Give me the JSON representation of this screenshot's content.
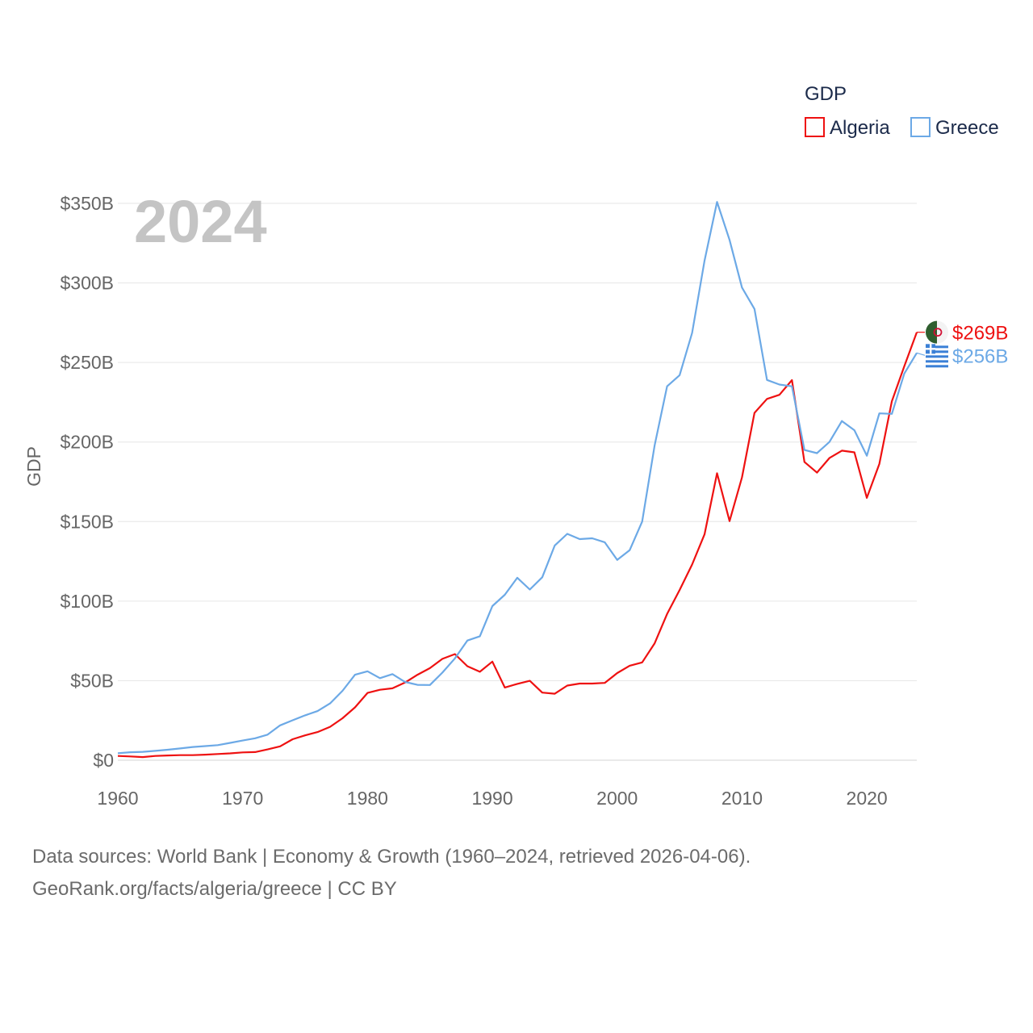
{
  "chart_data": {
    "type": "line",
    "title": "GDP",
    "year_label": "2024",
    "ylabel": "GDP",
    "xlabel": "",
    "ylim": [
      0,
      350
    ],
    "xlim": [
      1960,
      2024
    ],
    "y_ticks": [
      {
        "value": 0,
        "label": "$0"
      },
      {
        "value": 50,
        "label": "$50B"
      },
      {
        "value": 100,
        "label": "$100B"
      },
      {
        "value": 150,
        "label": "$150B"
      },
      {
        "value": 200,
        "label": "$200B"
      },
      {
        "value": 250,
        "label": "$250B"
      },
      {
        "value": 300,
        "label": "$300B"
      },
      {
        "value": 350,
        "label": "$350B"
      }
    ],
    "x_ticks": [
      1960,
      1970,
      1980,
      1990,
      2000,
      2010,
      2020
    ],
    "grid": true,
    "legend_position": "top-right",
    "legend_title": "GDP",
    "series": [
      {
        "name": "Algeria",
        "color": "#ee1111",
        "end_label": "$269B",
        "flag_icon": "algeria-flag-icon",
        "x": [
          1960,
          1961,
          1962,
          1963,
          1964,
          1965,
          1966,
          1967,
          1968,
          1969,
          1970,
          1971,
          1972,
          1973,
          1974,
          1975,
          1976,
          1977,
          1978,
          1979,
          1980,
          1981,
          1982,
          1983,
          1984,
          1985,
          1986,
          1987,
          1988,
          1989,
          1990,
          1991,
          1992,
          1993,
          1994,
          1995,
          1996,
          1997,
          1998,
          1999,
          2000,
          2001,
          2002,
          2003,
          2004,
          2005,
          2006,
          2007,
          2008,
          2009,
          2010,
          2011,
          2012,
          2013,
          2014,
          2015,
          2016,
          2017,
          2018,
          2019,
          2020,
          2021,
          2022,
          2023,
          2024
        ],
        "values": [
          2.7,
          2.4,
          2.0,
          2.7,
          3.0,
          3.2,
          3.2,
          3.5,
          3.9,
          4.3,
          4.9,
          5.1,
          6.8,
          8.7,
          13.2,
          15.6,
          17.7,
          21.0,
          26.4,
          33.2,
          42.3,
          44.3,
          45.2,
          48.8,
          53.7,
          57.9,
          63.7,
          66.7,
          59.1,
          55.6,
          62.0,
          45.7,
          48.0,
          49.9,
          42.5,
          41.8,
          46.9,
          48.2,
          48.2,
          48.6,
          54.8,
          59.4,
          61.5,
          73.5,
          91.9,
          107.0,
          123.0,
          142.0,
          180.4,
          150.3,
          177.8,
          218.3,
          227.1,
          229.7,
          238.9,
          187.5,
          180.8,
          189.9,
          194.6,
          193.5,
          164.9,
          186.2,
          225.6,
          247.6,
          269.0
        ]
      },
      {
        "name": "Greece",
        "color": "#6ca9e6",
        "end_label": "$256B",
        "flag_icon": "greece-flag-icon",
        "x": [
          1960,
          1961,
          1962,
          1963,
          1964,
          1965,
          1966,
          1967,
          1968,
          1969,
          1970,
          1971,
          1972,
          1973,
          1974,
          1975,
          1976,
          1977,
          1978,
          1979,
          1980,
          1981,
          1982,
          1983,
          1984,
          1985,
          1986,
          1987,
          1988,
          1989,
          1990,
          1991,
          1992,
          1993,
          1994,
          1995,
          1996,
          1997,
          1998,
          1999,
          2000,
          2001,
          2002,
          2003,
          2004,
          2005,
          2006,
          2007,
          2008,
          2009,
          2010,
          2011,
          2012,
          2013,
          2014,
          2015,
          2016,
          2017,
          2018,
          2019,
          2020,
          2021,
          2022,
          2023,
          2024
        ],
        "values": [
          4.4,
          5.0,
          5.3,
          5.9,
          6.6,
          7.4,
          8.3,
          8.9,
          9.5,
          10.9,
          12.4,
          13.8,
          16.1,
          21.9,
          25.1,
          28.2,
          30.9,
          35.7,
          43.6,
          53.7,
          55.9,
          51.6,
          54.1,
          49.2,
          47.4,
          47.3,
          55.1,
          64.0,
          75.2,
          77.9,
          96.9,
          104.0,
          114.7,
          107.3,
          115.0,
          135.0,
          142.3,
          139.0,
          139.5,
          137.0,
          125.9,
          132.0,
          150.0,
          198.0,
          235.0,
          242.0,
          268.6,
          314.0,
          350.9,
          327.0,
          297.1,
          283.6,
          239.0,
          236.1,
          235.0,
          195.0,
          193.0,
          200.0,
          213.2,
          207.4,
          191.4,
          218.0,
          217.7,
          243.0,
          256.0
        ]
      }
    ]
  },
  "source": {
    "line1": "Data sources: World Bank | Economy & Growth (1960–2024, retrieved 2026-04-06).",
    "line2": "GeoRank.org/facts/algeria/greece | CC BY"
  }
}
